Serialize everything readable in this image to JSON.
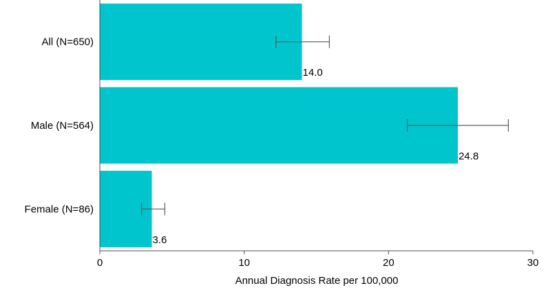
{
  "chart_data": {
    "type": "bar",
    "orientation": "horizontal",
    "categories": [
      "All (N=650)",
      "Male (N=564)",
      "Female (N=86)"
    ],
    "values": [
      14.0,
      24.8,
      3.6
    ],
    "value_labels": [
      "14.0",
      "24.8",
      "3.6"
    ],
    "error_bars": [
      {
        "low": 12.2,
        "high": 15.9
      },
      {
        "low": 21.3,
        "high": 28.3
      },
      {
        "low": 2.9,
        "high": 4.5
      }
    ],
    "title": "",
    "xlabel": "Annual Diagnosis Rate per 100,000",
    "ylabel": "",
    "xlim": [
      0,
      30
    ],
    "xticks": [
      0,
      10,
      20,
      30
    ],
    "xtick_labels": [
      "0",
      "10",
      "20",
      "30"
    ],
    "grid": false,
    "colors": {
      "bar": "#00C5CD",
      "error_bar": "#5a5a5a",
      "axis": "#4d4d4d"
    }
  }
}
